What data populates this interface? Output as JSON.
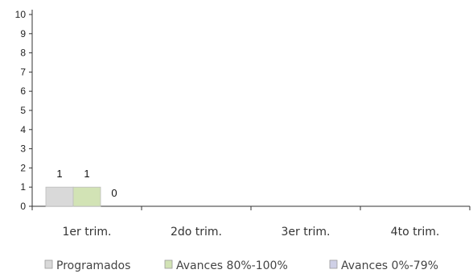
{
  "chart_data": {
    "type": "bar",
    "categories": [
      "1er trim.",
      "2do trim.",
      "3er trim.",
      "4to trim."
    ],
    "series": [
      {
        "name": "Programados",
        "values": [
          1,
          null,
          null,
          null
        ],
        "color": "#d9d9d9",
        "data_labels": [
          "1",
          "",
          "",
          ""
        ]
      },
      {
        "name": "Avances 80%-100%",
        "values": [
          1,
          null,
          null,
          null
        ],
        "color": "#d2e3b5",
        "data_labels": [
          "1",
          "",
          "",
          ""
        ]
      },
      {
        "name": "Avances 0%-79%",
        "values": [
          0,
          null,
          null,
          null
        ],
        "color": "#cfd0e6",
        "data_labels": [
          "0",
          "",
          "",
          ""
        ]
      }
    ],
    "ylim": [
      0,
      10
    ],
    "yticks": [
      "0",
      "1",
      "2",
      "3",
      "4",
      "5",
      "6",
      "7",
      "8",
      "9",
      "10"
    ],
    "grid": false,
    "legend_position": "bottom"
  }
}
